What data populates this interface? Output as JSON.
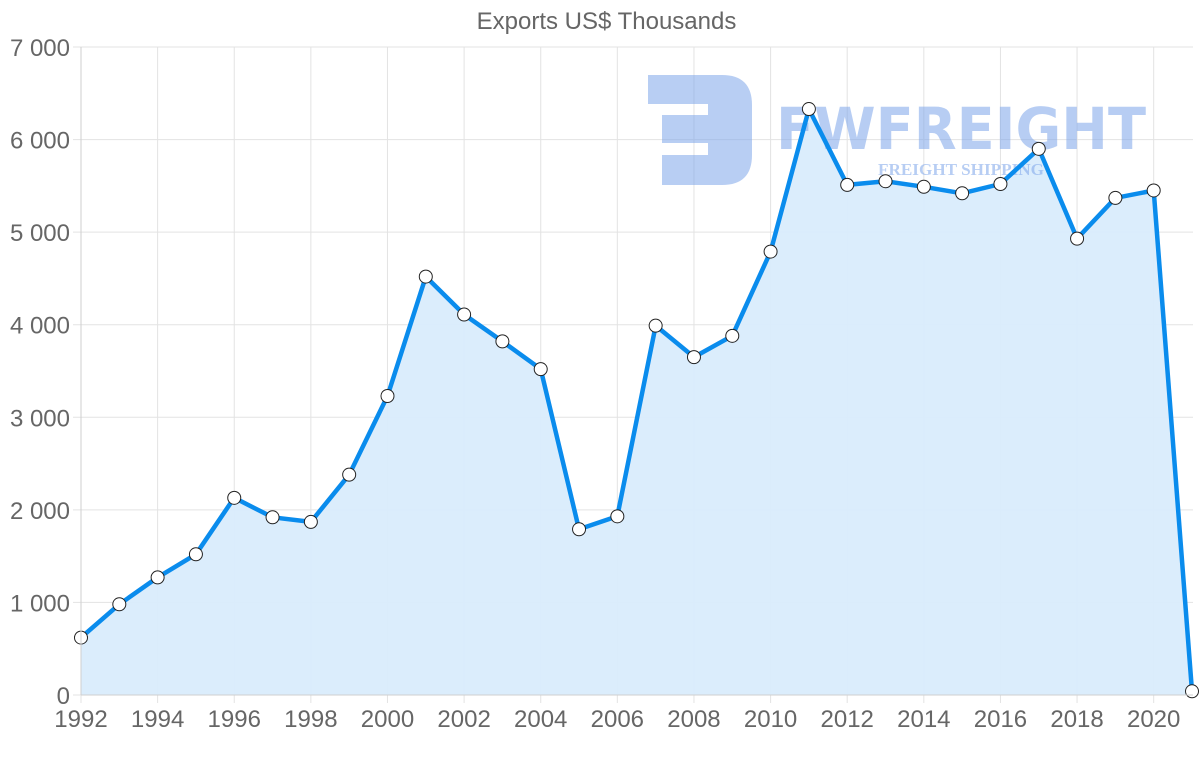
{
  "chart_data": {
    "type": "area",
    "title": "Exports US$ Thousands",
    "xlabel": "",
    "ylabel": "",
    "x": [
      1992,
      1993,
      1994,
      1995,
      1996,
      1997,
      1998,
      1999,
      2000,
      2001,
      2002,
      2003,
      2004,
      2005,
      2006,
      2007,
      2008,
      2009,
      2010,
      2011,
      2012,
      2013,
      2014,
      2015,
      2016,
      2017,
      2018,
      2019,
      2020,
      2021
    ],
    "series": [
      {
        "name": "Exports US$ Thousands",
        "values": [
          620,
          980,
          1270,
          1520,
          2130,
          1920,
          1870,
          2380,
          3230,
          4520,
          4110,
          3820,
          3520,
          1790,
          1930,
          3990,
          3650,
          3880,
          4790,
          6330,
          5510,
          5550,
          5490,
          5420,
          5520,
          5900,
          4930,
          5370,
          5450,
          40
        ],
        "color": "#0a8ced",
        "fill": "#d9ecfc"
      }
    ],
    "ylim": [
      0,
      7000
    ],
    "yticks": [
      "0",
      "1 000",
      "2 000",
      "3 000",
      "4 000",
      "5 000",
      "6 000",
      "7 000"
    ],
    "xticks": [
      "1992",
      "1994",
      "1996",
      "1998",
      "2000",
      "2002",
      "2004",
      "2006",
      "2008",
      "2010",
      "2012",
      "2014",
      "2016",
      "2018",
      "2020"
    ],
    "grid": true,
    "legend": "none"
  },
  "watermark": {
    "brand": "FWFREIGHT",
    "tagline": "FREIGHT SHIPPING"
  }
}
